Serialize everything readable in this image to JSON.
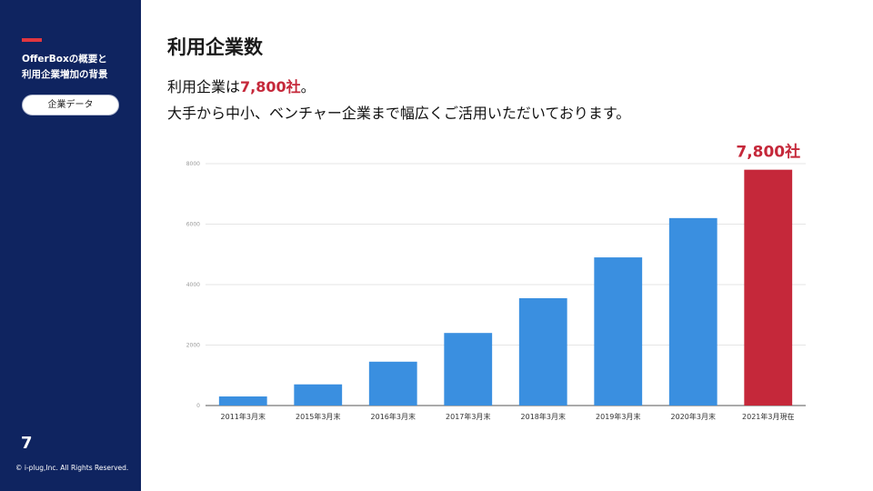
{
  "sidebar": {
    "section_title_line1": "OfferBoxの概要と",
    "section_title_line2": "利用企業増加の背景",
    "chip_label": "企業データ",
    "page_number": "7",
    "copyright": "© i-plug,Inc. All Rights Reserved."
  },
  "main": {
    "title": "利用企業数",
    "lead_prefix": "利用企業は",
    "lead_highlight": "7,800社",
    "lead_suffix": "。",
    "lead_line2": "大手から中小、ベンチャー企業まで幅広くご活用いただいております。"
  },
  "colors": {
    "sidebar_bg": "#0f2460",
    "bar": "#3a8fe0",
    "highlight_bar": "#c5283a",
    "accent": "#e0363f"
  },
  "chart_data": {
    "type": "bar",
    "categories": [
      "2011年3月末",
      "2015年3月末",
      "2016年3月末",
      "2017年3月末",
      "2018年3月末",
      "2019年3月末",
      "2020年3月末",
      "2021年3月現在"
    ],
    "values": [
      300,
      700,
      1450,
      2400,
      3550,
      4900,
      6200,
      7800
    ],
    "yticks": [
      "0",
      "2000",
      "4000",
      "6000",
      "8000"
    ],
    "ylim": [
      0,
      8000
    ],
    "highlight_index": 7,
    "data_label": "7,800社",
    "title": "",
    "xlabel": "",
    "ylabel": "",
    "grid": true
  }
}
